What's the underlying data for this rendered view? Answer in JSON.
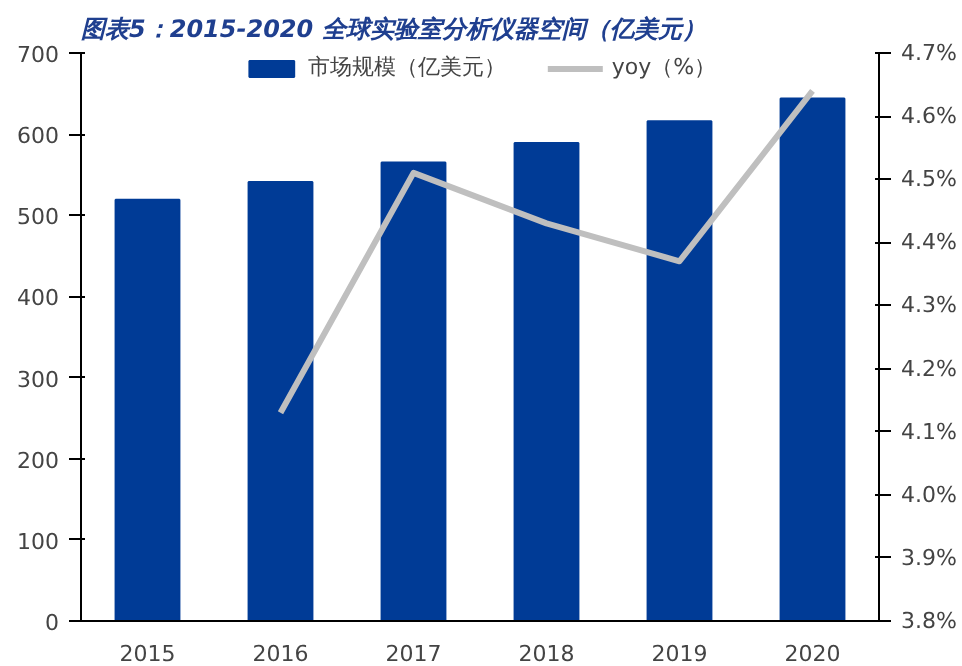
{
  "chart_data": {
    "type": "bar",
    "title": "图表5：2015-2020 全球实验室分析仪器空间（亿美元）",
    "categories": [
      "2015",
      "2016",
      "2017",
      "2018",
      "2019",
      "2020"
    ],
    "series": [
      {
        "name": "市场规模（亿美元）",
        "color": "#003b96",
        "values": [
          519,
          541,
          565,
          589,
          616,
          644
        ]
      },
      {
        "name": "yoy（%）",
        "type": "line",
        "axis": "y2",
        "color": "#bfbfbf",
        "values": [
          null,
          4.13,
          4.51,
          4.43,
          4.37,
          4.64
        ]
      }
    ],
    "ylim": [
      0,
      700
    ],
    "yticks": [
      0,
      100,
      200,
      300,
      400,
      500,
      600,
      700
    ],
    "y2lim": [
      3.8,
      4.7
    ],
    "y2ticks": [
      {
        "value": 3.8,
        "label": "3.8%"
      },
      {
        "value": 3.9,
        "label": "3.9%"
      },
      {
        "value": 4.0,
        "label": "4.0%"
      },
      {
        "value": 4.1,
        "label": "4.1%"
      },
      {
        "value": 4.2,
        "label": "4.2%"
      },
      {
        "value": 4.3,
        "label": "4.3%"
      },
      {
        "value": 4.4,
        "label": "4.4%"
      },
      {
        "value": 4.5,
        "label": "4.5%"
      },
      {
        "value": 4.6,
        "label": "4.6%"
      },
      {
        "value": 4.7,
        "label": "4.7%"
      }
    ],
    "legend": "top",
    "grid": false
  }
}
